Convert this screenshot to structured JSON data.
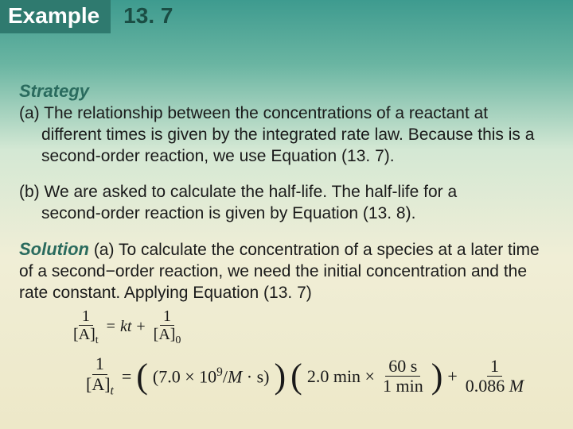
{
  "header": {
    "label": "Example",
    "number": "13. 7"
  },
  "strategy": {
    "label": "Strategy",
    "partA_first": "(a) The relationship between the concentrations of a reactant at",
    "partA_rest": "different times is given by the integrated rate law. Because this is a second-order reaction, we use Equation (13. 7).",
    "partB_first": "(b) We are asked to calculate the half-life. The half-life for a",
    "partB_rest": "second-order reaction is given by Equation (13. 8)."
  },
  "solution": {
    "label": "Solution",
    "text": "  (a) To calculate the concentration of a species at a later time of a second−order reaction, we need the initial concentration and the rate constant.  Applying Equation (13. 7)"
  },
  "eq_small": {
    "lhs_num": "1",
    "lhs_den": "[A]",
    "lhs_sub": "t",
    "eq": "=",
    "k": "kt",
    "plus": "+",
    "rhs_num": "1",
    "rhs_den": "[A]",
    "rhs_sub": "0"
  },
  "eq_main": {
    "lhs_num": "1",
    "lhs_den": "[A]",
    "lhs_sub": "t",
    "eq": "=",
    "term1": "(7.0 × 10",
    "term1_sup": "9",
    "term1_rest": "/",
    "term1_M": "M",
    "term1_end": " · s)",
    "term2_a": "2.0 min ×",
    "term2_num": "60 s",
    "term2_den": "1 min",
    "plus": "+",
    "term3_num": "1",
    "term3_den": "0.086 ",
    "term3_M": "M"
  },
  "colors": {
    "header_bg": "#2f7a6f",
    "header_text": "#ffffff",
    "number_text": "#1a4d44",
    "accent": "#2a6b5e",
    "body_text": "#1a1a1a"
  }
}
